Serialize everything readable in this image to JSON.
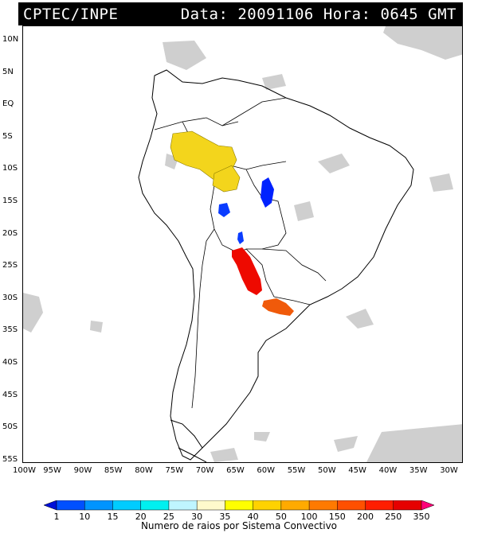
{
  "header": {
    "source": "CPTEC/INPE",
    "date_label": "Data:",
    "date_value": "20091106",
    "hour_label": "Hora:",
    "hour_value": "0645 GMT"
  },
  "map": {
    "lat_labels": [
      "10N",
      "5N",
      "EQ",
      "5S",
      "10S",
      "15S",
      "20S",
      "25S",
      "30S",
      "35S",
      "40S",
      "45S",
      "50S",
      "55S"
    ],
    "lon_labels": [
      "100W",
      "95W",
      "90W",
      "85W",
      "80W",
      "75W",
      "70W",
      "65W",
      "60W",
      "55W",
      "50W",
      "45W",
      "40W",
      "35W",
      "30W"
    ],
    "lon_range": [
      -100,
      -28
    ],
    "lat_range": [
      -56,
      13
    ],
    "cloud_color": "#cfcfcf",
    "coastline_color": "#000000",
    "convective_systems": [
      {
        "name": "amazon-west",
        "color": "#f3d51c",
        "class_value": 40
      },
      {
        "name": "rondonia",
        "color": "#f3d51c",
        "class_value": 40
      },
      {
        "name": "mato-grosso",
        "color": "#0022ff",
        "class_value": 1
      },
      {
        "name": "bolivia-small",
        "color": "#0a3cff",
        "class_value": 10
      },
      {
        "name": "paraguay-dot",
        "color": "#0a3cff",
        "class_value": 10
      },
      {
        "name": "argentina-chaco",
        "color": "#ee0a00",
        "class_value": 250
      },
      {
        "name": "uruguay",
        "color": "#f05a0a",
        "class_value": 200
      }
    ]
  },
  "colorbar": {
    "labels": [
      "1",
      "10",
      "15",
      "20",
      "25",
      "30",
      "35",
      "40",
      "50",
      "100",
      "150",
      "200",
      "250",
      "350"
    ],
    "colors": [
      "#0010d8",
      "#0050ff",
      "#0094ff",
      "#00ccff",
      "#00f0f0",
      "#bff5ff",
      "#fffacc",
      "#ffff00",
      "#ffd200",
      "#ffaa00",
      "#ff7a00",
      "#ff5000",
      "#ff1e00",
      "#e60000",
      "#ff0078"
    ],
    "title": "Numero de raios por Sistema Convectivo"
  }
}
